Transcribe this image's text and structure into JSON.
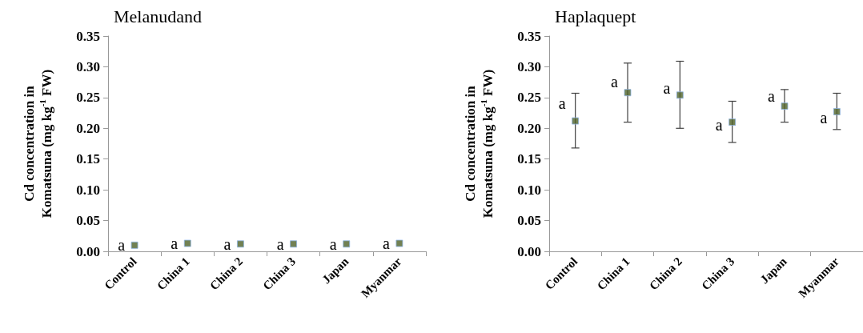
{
  "chart_data": [
    {
      "type": "scatter",
      "title": "Melanudand",
      "ylabel": "Cd concentration in\nKomatsuna (mg kg$^{-1}$ FW)",
      "categories": [
        "Control",
        "China 1",
        "China 2",
        "China 3",
        "Japan",
        "Myanmar"
      ],
      "series": [
        {
          "color": "#4f6228",
          "values": [
            0.01,
            0.013,
            0.012,
            0.012,
            0.012,
            0.013
          ]
        }
      ],
      "marker": "square",
      "grid": false,
      "ylim": [
        0,
        0.35
      ],
      "yticks": [
        {
          "value": 0,
          "label": "0.00"
        },
        {
          "value": 0.05,
          "label": "0.05"
        },
        {
          "value": 0.1,
          "label": "0.10"
        },
        {
          "value": 0.15,
          "label": "0.15"
        },
        {
          "value": 0.2,
          "label": "0.20"
        },
        {
          "value": 0.25,
          "label": "0.25"
        },
        {
          "value": 0.3,
          "label": "0.30"
        },
        {
          "value": 0.35,
          "label": "0.35"
        }
      ],
      "annotations": [
        {
          "text": "a",
          "x": "Control",
          "y": 0.01
        },
        {
          "text": "a",
          "x": "China 1",
          "y": 0.013
        },
        {
          "text": "a",
          "x": "China 2",
          "y": 0.012
        },
        {
          "text": "a",
          "x": "China 3",
          "y": 0.012
        },
        {
          "text": "a",
          "x": "Japan",
          "y": 0.012
        },
        {
          "text": "a",
          "x": "Myanmar",
          "y": 0.013
        }
      ]
    },
    {
      "type": "scatter",
      "title": "Haplaquept",
      "ylabel": "Cd concentration in\nKomatsuna (mg kg$^{-1}$ FW)",
      "categories": [
        "Control",
        "China 1",
        "China 2",
        "China 3",
        "Japan",
        "Myanmar"
      ],
      "series": [
        {
          "color": "#4f6228",
          "values": [
            0.212,
            0.258,
            0.254,
            0.21,
            0.236,
            0.227
          ],
          "errors": [
            [
              0.168,
              0.257
            ],
            [
              0.21,
              0.306
            ],
            [
              0.2,
              0.309
            ],
            [
              0.177,
              0.244
            ],
            [
              0.21,
              0.263
            ],
            [
              0.198,
              0.257
            ]
          ]
        }
      ],
      "marker": "square",
      "grid": false,
      "ylim": [
        0,
        0.35
      ],
      "yticks": [
        {
          "value": 0,
          "label": "0.00"
        },
        {
          "value": 0.05,
          "label": "0.05"
        },
        {
          "value": 0.1,
          "label": "0.10"
        },
        {
          "value": 0.15,
          "label": "0.15"
        },
        {
          "value": 0.2,
          "label": "0.20"
        },
        {
          "value": 0.25,
          "label": "0.25"
        },
        {
          "value": 0.3,
          "label": "0.30"
        },
        {
          "value": 0.35,
          "label": "0.35"
        }
      ],
      "annotations": [
        {
          "text": "a",
          "x": "Control",
          "y": 0.241
        },
        {
          "text": "a",
          "x": "China 1",
          "y": 0.276
        },
        {
          "text": "a",
          "x": "China 2",
          "y": 0.266
        },
        {
          "text": "a",
          "x": "China 3",
          "y": 0.206
        },
        {
          "text": "a",
          "x": "Japan",
          "y": 0.252
        },
        {
          "text": "a",
          "x": "Myanmar",
          "y": 0.217
        }
      ]
    }
  ]
}
